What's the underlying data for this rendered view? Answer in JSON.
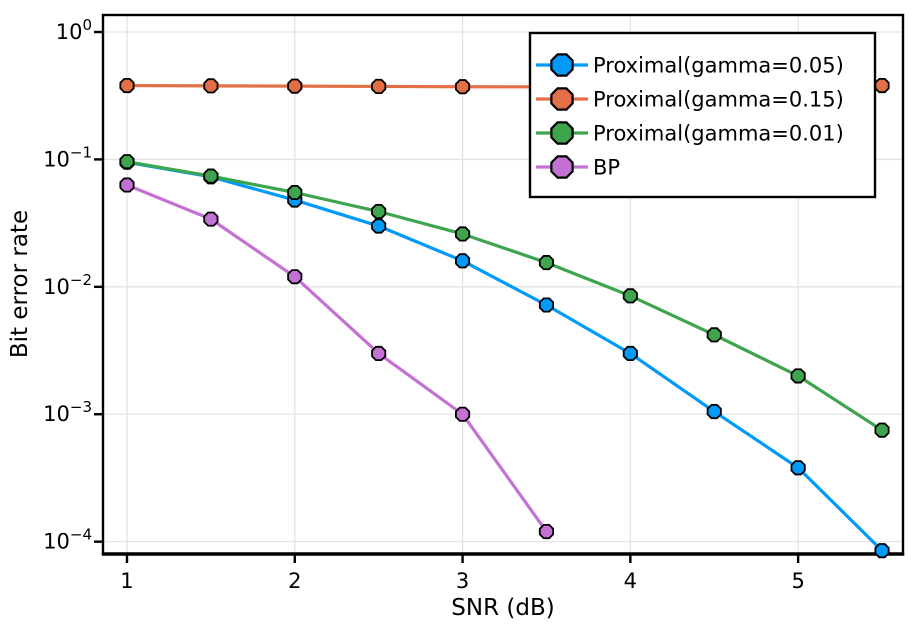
{
  "chart_data": {
    "type": "line",
    "title": "",
    "xlabel": "SNR (dB)",
    "ylabel": "Bit error rate",
    "x_scale": "linear",
    "y_scale": "log",
    "xlim": [
      0.857,
      5.625
    ],
    "ylim": [
      8e-05,
      1.36
    ],
    "grid": {
      "show": true,
      "color": "#e3e3e3"
    },
    "x_ticks": {
      "values": [
        1,
        2,
        3,
        4,
        5
      ],
      "labels": [
        "1",
        "2",
        "3",
        "4",
        "5"
      ]
    },
    "y_ticks": {
      "values": [
        1,
        0.1,
        0.01,
        0.001,
        0.0001
      ],
      "labels": [
        {
          "mantissa": "10",
          "exponent": "0"
        },
        {
          "mantissa": "10",
          "exponent": "−1"
        },
        {
          "mantissa": "10",
          "exponent": "−2"
        },
        {
          "mantissa": "10",
          "exponent": "−3"
        },
        {
          "mantissa": "10",
          "exponent": "−4"
        }
      ]
    },
    "series": [
      {
        "name": "Proximal(gamma=0.05)",
        "color": "#009AFA",
        "marker": "octagon",
        "marker_stroke": "#000000",
        "x": [
          1.0,
          1.5,
          2.0,
          2.5,
          3.0,
          3.5,
          4.0,
          4.5,
          5.0,
          5.5
        ],
        "values": [
          0.095,
          0.073,
          0.048,
          0.03,
          0.016,
          0.0072,
          0.003,
          0.00105,
          0.00038,
          8.5e-05
        ]
      },
      {
        "name": "Proximal(gamma=0.15)",
        "color": "#E36F47",
        "marker": "octagon",
        "marker_stroke": "#000000",
        "x": [
          1.0,
          1.5,
          2.0,
          2.5,
          3.0,
          3.5,
          4.0,
          4.5,
          5.0,
          5.5
        ],
        "values": [
          0.38,
          0.378,
          0.376,
          0.374,
          0.372,
          0.371,
          0.371,
          0.372,
          0.375,
          0.38
        ]
      },
      {
        "name": "Proximal(gamma=0.01)",
        "color": "#3EA44E",
        "marker": "octagon",
        "marker_stroke": "#000000",
        "x": [
          1.0,
          1.5,
          2.0,
          2.5,
          3.0,
          3.5,
          4.0,
          4.5,
          5.0,
          5.5
        ],
        "values": [
          0.096,
          0.074,
          0.055,
          0.039,
          0.026,
          0.0155,
          0.0085,
          0.0042,
          0.002,
          0.00075
        ]
      },
      {
        "name": "BP",
        "color": "#C371D2",
        "marker": "octagon",
        "marker_stroke": "#000000",
        "x": [
          1.0,
          1.5,
          2.0,
          2.5,
          3.0,
          3.5
        ],
        "values": [
          0.063,
          0.034,
          0.012,
          0.003,
          0.001,
          0.00012
        ]
      }
    ],
    "legend": {
      "position": "top-right",
      "background": "#ffffff",
      "border_color": "#000000",
      "entries": [
        "Proximal(gamma=0.05)",
        "Proximal(gamma=0.15)",
        "Proximal(gamma=0.01)",
        "BP"
      ]
    }
  }
}
